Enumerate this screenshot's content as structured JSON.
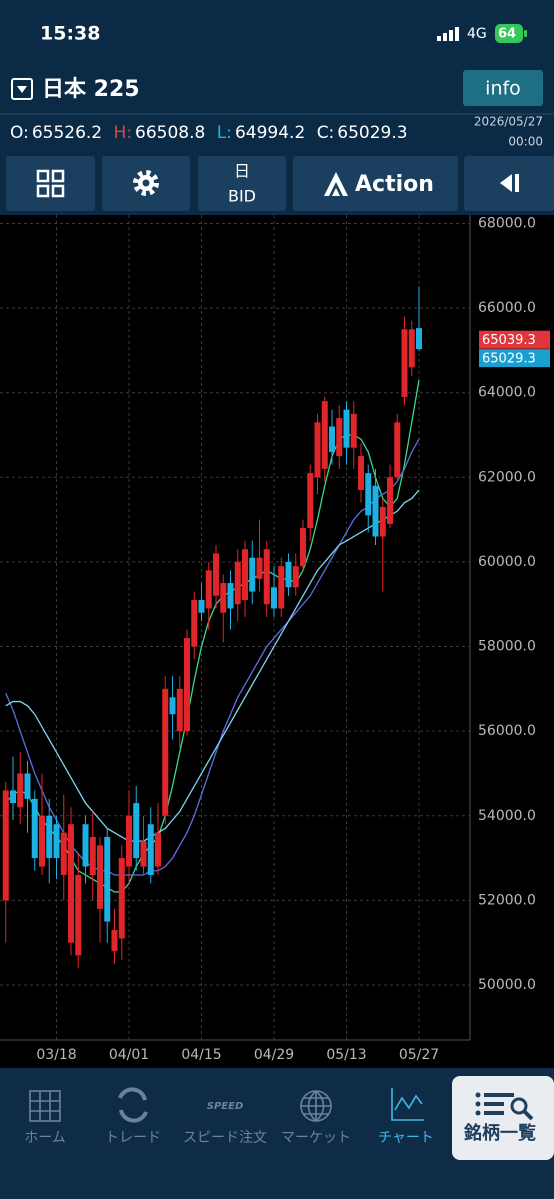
{
  "status_bar": {
    "time": "15:38",
    "network": "4G",
    "battery": "64"
  },
  "header": {
    "symbol": "日本 225",
    "info_button": "info",
    "ohlc": [
      {
        "key": "O:",
        "value": "65526.2"
      },
      {
        "key": "H:",
        "value": "66508.8"
      },
      {
        "key": "L:",
        "value": "64994.2"
      },
      {
        "key": "C:",
        "value": "65029.3"
      }
    ],
    "date": "2026/05/27",
    "time": "00:00"
  },
  "toolbar": {
    "period": "日",
    "price_side": "BID",
    "action": "Action"
  },
  "chart_data": {
    "type": "candlestick",
    "x": [
      null,
      null,
      null,
      null,
      null,
      null,
      null,
      "03/18",
      null,
      null,
      null,
      null,
      null,
      null,
      null,
      null,
      null,
      "04/01",
      null,
      null,
      null,
      null,
      null,
      null,
      null,
      null,
      null,
      "04/15",
      null,
      null,
      null,
      null,
      null,
      null,
      null,
      null,
      null,
      "04/29",
      null,
      null,
      null,
      null,
      null,
      null,
      null,
      null,
      null,
      "05/13",
      null,
      null,
      null,
      null,
      null,
      null,
      null,
      null,
      null,
      "05/27"
    ],
    "open": [
      52000,
      54600,
      54200,
      55000,
      54400,
      52800,
      54000,
      53800,
      52600,
      51000,
      50700,
      53800,
      52600,
      51800,
      53500,
      50800,
      51100,
      52800,
      54300,
      52800,
      53800,
      52800,
      54000,
      56800,
      56000,
      56000,
      58000,
      59100,
      58900,
      59200,
      58800,
      59500,
      59000,
      59100,
      60100,
      59600,
      59000,
      59400,
      58900,
      60000,
      59400,
      59900,
      60800,
      62000,
      62200,
      63200,
      62500,
      63600,
      62700,
      61700,
      62100,
      61800,
      60600,
      60900,
      62000,
      63900,
      64600,
      65526.2
    ],
    "high": [
      54800,
      55400,
      55500,
      55300,
      54600,
      55000,
      54400,
      54000,
      54500,
      54200,
      53100,
      54000,
      54100,
      53500,
      53700,
      51800,
      53300,
      54600,
      54700,
      54000,
      54200,
      54300,
      57300,
      57300,
      57300,
      58400,
      59300,
      59500,
      60000,
      60400,
      59700,
      59800,
      60300,
      60500,
      60500,
      61000,
      60500,
      59900,
      60100,
      60200,
      60200,
      61000,
      62300,
      63500,
      63900,
      63600,
      63700,
      63800,
      63800,
      62800,
      62300,
      62200,
      61500,
      62300,
      63500,
      65800,
      65700,
      66508.8
    ],
    "low": [
      51000,
      53900,
      53800,
      53600,
      52700,
      52600,
      52400,
      52500,
      52000,
      50700,
      50400,
      52400,
      52000,
      51000,
      51000,
      50500,
      50600,
      52400,
      52700,
      52600,
      52400,
      52600,
      53800,
      55800,
      55600,
      55900,
      57700,
      58600,
      58400,
      58900,
      58100,
      58400,
      58600,
      58700,
      59000,
      59300,
      58700,
      58700,
      58700,
      59200,
      59200,
      59800,
      60500,
      61600,
      61900,
      62300,
      62200,
      62300,
      62200,
      61400,
      60700,
      60400,
      59300,
      60800,
      61900,
      63700,
      64400,
      64994.2
    ],
    "close": [
      54600,
      54300,
      55000,
      54400,
      53000,
      54000,
      53000,
      53000,
      53600,
      53800,
      52600,
      52800,
      53500,
      53300,
      51500,
      51300,
      53000,
      54000,
      53000,
      53400,
      52600,
      53600,
      57000,
      56400,
      57000,
      58200,
      59100,
      58800,
      59800,
      60200,
      59500,
      58900,
      60000,
      60300,
      59300,
      60100,
      60300,
      58900,
      59900,
      59400,
      59900,
      60800,
      62100,
      63300,
      63800,
      62600,
      63400,
      62700,
      63500,
      62500,
      61100,
      60600,
      61300,
      62000,
      63300,
      65500,
      65500,
      65029.3
    ],
    "up_color": "#e0262b",
    "down_color": "#1cb0e3",
    "series": [
      {
        "name": "MA short",
        "color": "#39d98a",
        "values": [
          54300,
          54500,
          54600,
          54500,
          54200,
          53900,
          53700,
          53500,
          53300,
          53000,
          52700,
          52600,
          52500,
          52400,
          52300,
          52200,
          52200,
          52400,
          52800,
          53100,
          53300,
          53500,
          54000,
          54700,
          55500,
          56300,
          57200,
          58000,
          58600,
          59000,
          59200,
          59300,
          59400,
          59500,
          59600,
          59700,
          59800,
          59700,
          59600,
          59600,
          59500,
          59800,
          60300,
          61000,
          61800,
          62500,
          62900,
          63000,
          63000,
          62900,
          62600,
          62000,
          61500,
          61300,
          61500,
          62300,
          63300,
          64300
        ]
      },
      {
        "name": "MA mid",
        "color": "#5a6fe0",
        "values": [
          56900,
          56500,
          56000,
          55500,
          55000,
          54600,
          54200,
          53900,
          53600,
          53300,
          53100,
          52900,
          52800,
          52700,
          52700,
          52600,
          52600,
          52600,
          52600,
          52600,
          52700,
          52700,
          52800,
          53000,
          53300,
          53600,
          54000,
          54500,
          55000,
          55500,
          56000,
          56400,
          56800,
          57100,
          57400,
          57700,
          58000,
          58200,
          58400,
          58600,
          58800,
          59000,
          59200,
          59500,
          59800,
          60100,
          60400,
          60700,
          61000,
          61200,
          61300,
          61500,
          61600,
          61700,
          61900,
          62200,
          62600,
          62900
        ]
      },
      {
        "name": "MA long",
        "color": "#7fd6f0",
        "values": [
          56600,
          56700,
          56700,
          56600,
          56400,
          56100,
          55800,
          55500,
          55200,
          54900,
          54600,
          54300,
          54100,
          53900,
          53700,
          53600,
          53500,
          53400,
          53400,
          53400,
          53500,
          53600,
          53700,
          53900,
          54100,
          54400,
          54700,
          55000,
          55300,
          55600,
          55900,
          56200,
          56500,
          56800,
          57100,
          57400,
          57700,
          58000,
          58300,
          58600,
          58900,
          59200,
          59500,
          59800,
          60000,
          60200,
          60400,
          60500,
          60600,
          60700,
          60800,
          60900,
          61000,
          61100,
          61200,
          61400,
          61500,
          61700
        ]
      }
    ],
    "ylim": [
      48700,
      68200
    ],
    "yticks": [
      {
        "value": 50000,
        "label": "50000.0"
      },
      {
        "value": 52000,
        "label": "52000.0"
      },
      {
        "value": 54000,
        "label": "54000.0"
      },
      {
        "value": 56000,
        "label": "56000.0"
      },
      {
        "value": 58000,
        "label": "58000.0"
      },
      {
        "value": 60000,
        "label": "60000.0"
      },
      {
        "value": 62000,
        "label": "62000.0"
      },
      {
        "value": 64000,
        "label": "64000.0"
      },
      {
        "value": 66000,
        "label": "66000.0"
      },
      {
        "value": 68000,
        "label": "68000.0"
      }
    ],
    "grid": true,
    "price_markers": [
      {
        "value": 65039.3,
        "color": "#e0353b"
      },
      {
        "value": 65029.3,
        "color": "#1a9fd0"
      }
    ]
  },
  "nav": [
    {
      "label": "ホーム"
    },
    {
      "label": "トレード"
    },
    {
      "label": "スピード注文"
    },
    {
      "label": "マーケット"
    },
    {
      "label": "チャート"
    },
    {
      "label": "銘柄一覧"
    }
  ]
}
